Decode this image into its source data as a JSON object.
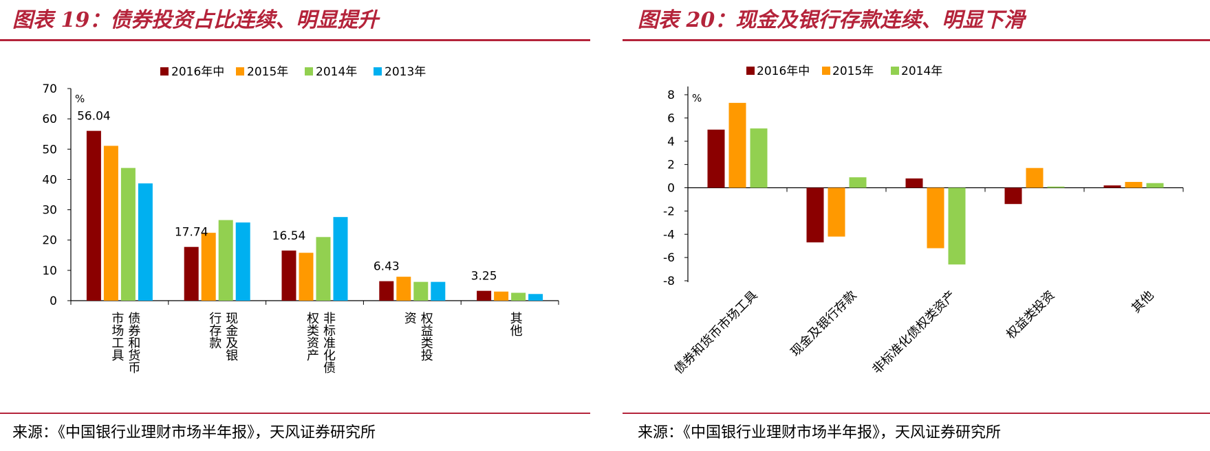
{
  "figures": [
    {
      "title": "图表 19：债券投资占比连续、明显提升",
      "source": "来源：《中国银行业理财市场半年报》，天风证券研究所"
    },
    {
      "title": "图表 20：现金及银行存款连续、明显下滑",
      "source": "来源：《中国银行业理财市场半年报》，天风证券研究所"
    }
  ],
  "chart_data": [
    {
      "type": "bar",
      "unit": "%",
      "categories": [
        "债券和货币市场工具",
        "现金及银行存款",
        "非标准化债权类资产",
        "权益类投资",
        "其他"
      ],
      "series": [
        {
          "name": "2016年中",
          "color": "#8b0000",
          "values": [
            56.04,
            17.74,
            16.54,
            6.43,
            3.25
          ]
        },
        {
          "name": "2015年",
          "color": "#ff9900",
          "values": [
            51.1,
            22.4,
            15.8,
            7.9,
            3.0
          ]
        },
        {
          "name": "2014年",
          "color": "#92d050",
          "values": [
            43.8,
            26.6,
            21.0,
            6.2,
            2.6
          ]
        },
        {
          "name": "2013年",
          "color": "#00b0f0",
          "values": [
            38.7,
            25.8,
            27.6,
            6.2,
            2.2
          ]
        }
      ],
      "data_labels": {
        "series": "2016年中",
        "values": [
          "56.04",
          "17.74",
          "16.54",
          "6.43",
          "3.25"
        ]
      },
      "ylim": [
        0,
        70
      ],
      "yticks": [
        0,
        10,
        20,
        30,
        40,
        50,
        60,
        70
      ],
      "legend": "top-center",
      "grid": false
    },
    {
      "type": "bar",
      "unit": "%",
      "categories": [
        "债券和货币市场工具",
        "现金及银行存款",
        "非标准化债权类资产",
        "权益类投资",
        "其他"
      ],
      "series": [
        {
          "name": "2016年中",
          "color": "#8b0000",
          "values": [
            5.0,
            -4.7,
            0.8,
            -1.4,
            0.2
          ]
        },
        {
          "name": "2015年",
          "color": "#ff9900",
          "values": [
            7.3,
            -4.2,
            -5.2,
            1.7,
            0.5
          ]
        },
        {
          "name": "2014年",
          "color": "#92d050",
          "values": [
            5.1,
            0.9,
            -6.6,
            0.1,
            0.4
          ]
        }
      ],
      "ylim": [
        -8,
        8
      ],
      "yticks": [
        -8,
        -6,
        -4,
        -2,
        0,
        2,
        4,
        6,
        8
      ],
      "legend": "top-center",
      "grid": false
    }
  ]
}
